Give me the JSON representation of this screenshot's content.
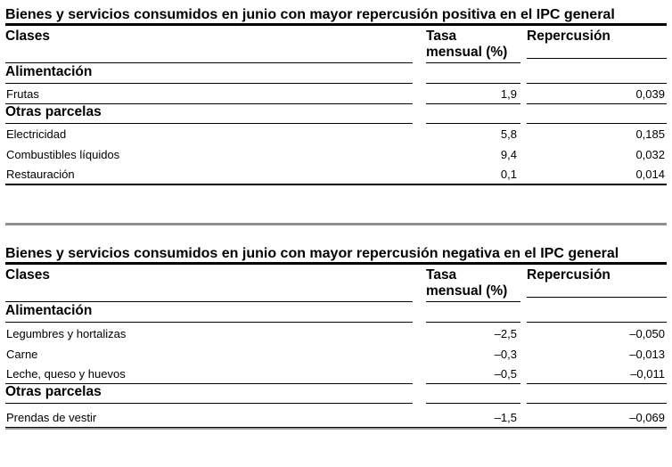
{
  "page": {
    "background": "#ffffff",
    "text_color": "#000000",
    "divider_color": "#8f8f8f"
  },
  "tables": [
    {
      "title": "Bienes y servicios consumidos en junio con mayor repercusión positiva en el IPC general",
      "columns": {
        "clases": "Clases",
        "tasa": "Tasa mensual (%)",
        "repercusion": "Repercusión"
      },
      "rows": [
        {
          "type": "section",
          "clases": "Alimentación",
          "tasa": "",
          "repercusion": ""
        },
        {
          "type": "data",
          "clases": "Frutas",
          "tasa": "1,9",
          "repercusion": "0,039"
        },
        {
          "type": "section",
          "clases": "Otras parcelas",
          "tasa": "",
          "repercusion": ""
        },
        {
          "type": "data",
          "clases": "Electricidad",
          "tasa": "5,8",
          "repercusion": "0,185"
        },
        {
          "type": "data",
          "clases": "Combustibles líquidos",
          "tasa": "9,4",
          "repercusion": "0,032"
        },
        {
          "type": "data",
          "clases": "Restauración",
          "tasa": "0,1",
          "repercusion": "0,014"
        }
      ]
    },
    {
      "title": "Bienes y servicios consumidos en junio con mayor repercusión negativa en el IPC general",
      "columns": {
        "clases": "Clases",
        "tasa": "Tasa mensual (%)",
        "repercusion": "Repercusión"
      },
      "rows": [
        {
          "type": "section",
          "clases": "Alimentación",
          "tasa": "",
          "repercusion": ""
        },
        {
          "type": "data",
          "clases": "Legumbres y hortalizas",
          "tasa": "–2,5",
          "repercusion": "–0,050"
        },
        {
          "type": "data",
          "clases": "Carne",
          "tasa": "–0,3",
          "repercusion": "–0,013"
        },
        {
          "type": "data",
          "clases": "Leche, queso y huevos",
          "tasa": "–0,5",
          "repercusion": "–0,011"
        },
        {
          "type": "section",
          "clases": "Otras parcelas",
          "tasa": "",
          "repercusion": ""
        },
        {
          "type": "data",
          "clases": "Prendas de vestir",
          "tasa": "–1,5",
          "repercusion": "–0,069"
        }
      ]
    }
  ]
}
